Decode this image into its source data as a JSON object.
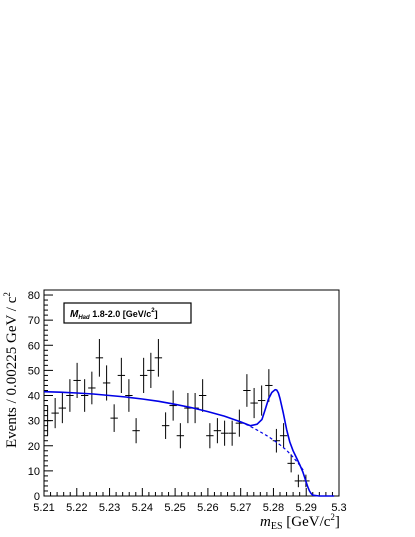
{
  "chart_data": {
    "type": "scatter",
    "title": "",
    "xlabel": {
      "symbol": "m",
      "subscript": "ES",
      "unit": " [GeV/c",
      "unit_sup": "2",
      "unit_end": "]"
    },
    "ylabel": {
      "text": "Events / 0.00225 GeV / c",
      "sup": "2"
    },
    "xlim": [
      5.21,
      5.3
    ],
    "ylim": [
      0,
      82
    ],
    "x_ticks": [
      "5.21",
      "5.22",
      "5.23",
      "5.24",
      "5.25",
      "5.26",
      "5.27",
      "5.28",
      "5.29",
      "5.3"
    ],
    "y_ticks": [
      "0",
      "10",
      "20",
      "30",
      "40",
      "50",
      "60",
      "70",
      "80"
    ],
    "legend_box": {
      "symbol": "M",
      "subscript": "Had",
      "text": " 1.8-2.0 [GeV/c",
      "sup": "2",
      "text_end": "]"
    },
    "bin_half_width": 0.001125,
    "data": {
      "name": "",
      "x": [
        5.2111,
        5.2134,
        5.2156,
        5.2179,
        5.2201,
        5.2224,
        5.2246,
        5.2269,
        5.2291,
        5.2314,
        5.2336,
        5.2359,
        5.2381,
        5.2404,
        5.2426,
        5.2449,
        5.2471,
        5.2494,
        5.2516,
        5.2539,
        5.2561,
        5.2584,
        5.2606,
        5.2629,
        5.2651,
        5.2674,
        5.2696,
        5.2719,
        5.2741,
        5.2764,
        5.2786,
        5.2809,
        5.2831,
        5.2854,
        5.2876,
        5.2899,
        5.2921,
        5.2944,
        5.2966,
        5.2989
      ],
      "y": [
        30,
        33,
        35,
        40,
        46,
        40,
        43,
        55,
        45,
        31,
        48,
        40,
        26,
        48,
        50,
        55,
        28,
        36,
        24,
        35,
        35,
        40,
        24,
        26,
        25,
        25,
        29,
        42,
        37,
        38,
        44,
        22,
        24,
        13,
        6,
        6,
        0,
        0,
        0,
        0
      ],
      "yerr": [
        6,
        6,
        6,
        6.5,
        7,
        6.5,
        6.5,
        7.5,
        7,
        5.5,
        7,
        6.5,
        5,
        7,
        7,
        7.5,
        5.3,
        6,
        5,
        6,
        6,
        6.5,
        5,
        5,
        5,
        5,
        5.4,
        6.5,
        6,
        6,
        6.5,
        4.7,
        5,
        3.6,
        2.5,
        2.5,
        0,
        0,
        0,
        0
      ]
    },
    "series": [
      {
        "name": "",
        "style": "solid",
        "color": "#0000e6",
        "x": [
          5.21,
          5.215,
          5.22,
          5.225,
          5.23,
          5.235,
          5.24,
          5.245,
          5.25,
          5.255,
          5.26,
          5.265,
          5.27,
          5.273,
          5.275,
          5.2765,
          5.2775,
          5.2785,
          5.2795,
          5.2805,
          5.281,
          5.2815,
          5.282,
          5.283,
          5.284,
          5.285,
          5.286,
          5.287,
          5.288,
          5.289,
          5.2895,
          5.29,
          5.2905,
          5.291,
          5.2915,
          5.292,
          5.294,
          5.2985
        ],
        "y": [
          41.5,
          41.3,
          41,
          40.6,
          40,
          39.4,
          38.6,
          37.7,
          36.5,
          35.2,
          33.6,
          31.8,
          29.5,
          28,
          28.6,
          30.5,
          34.5,
          38.6,
          41.2,
          42.3,
          42.2,
          41,
          38.8,
          33,
          26.5,
          21.5,
          18,
          15.3,
          12.5,
          9.5,
          7.5,
          5.5,
          3.5,
          2,
          1,
          0.3,
          0,
          0
        ]
      },
      {
        "name": "",
        "style": "dashed",
        "color": "#0000e6",
        "x": [
          5.27,
          5.272,
          5.274,
          5.276,
          5.278,
          5.28,
          5.282,
          5.284,
          5.286,
          5.288,
          5.2895
        ],
        "y": [
          29.5,
          28.3,
          27,
          25.5,
          24,
          22.3,
          20.4,
          18.2,
          15.5,
          12.3,
          9.5
        ]
      }
    ],
    "grid": false,
    "legend": "top-left"
  }
}
